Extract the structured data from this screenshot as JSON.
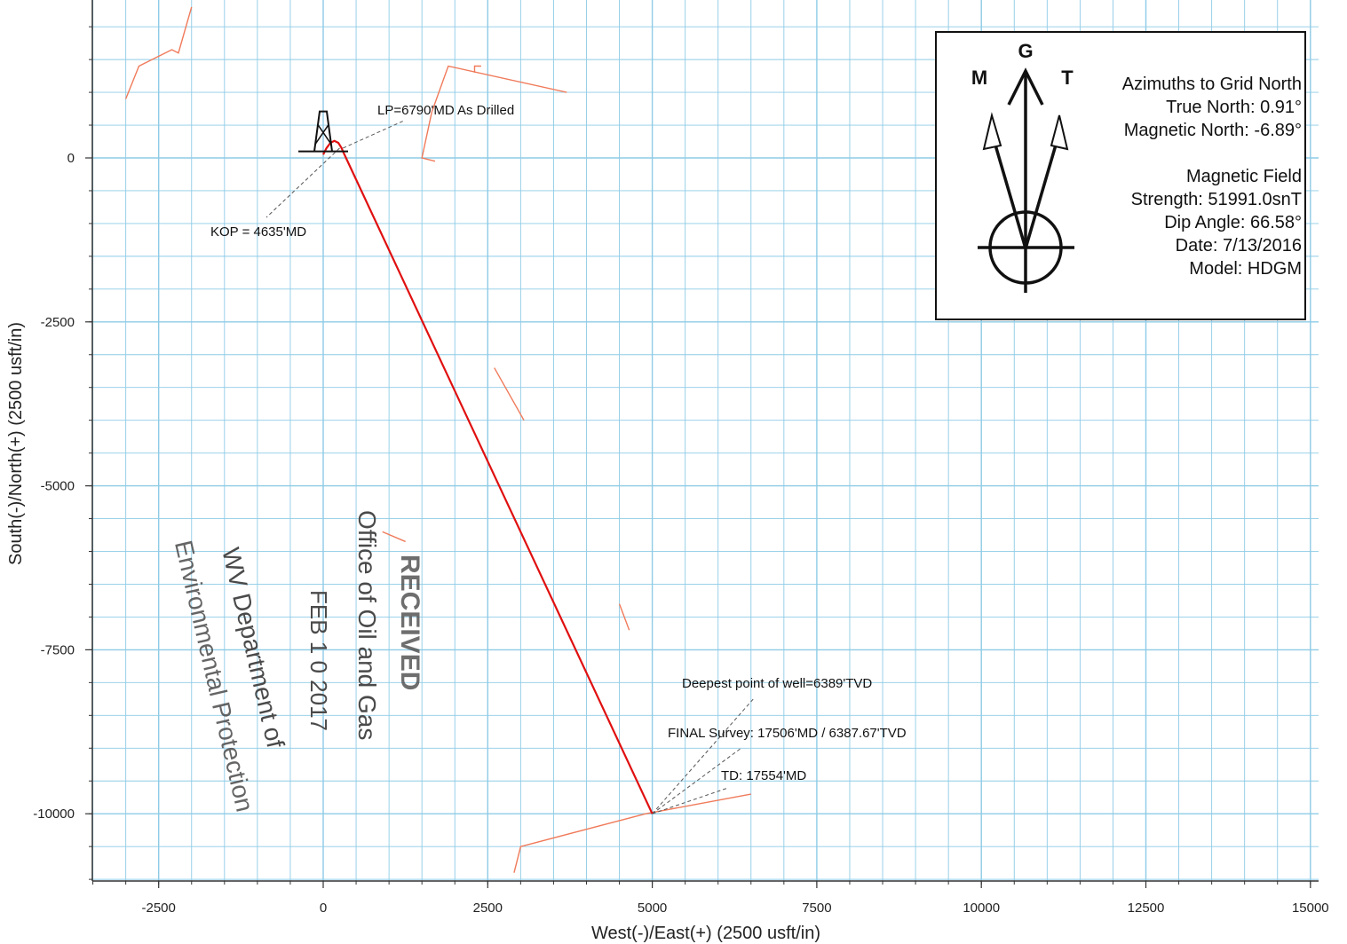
{
  "chart_data": {
    "type": "line",
    "xlabel": "West(-)/East(+) (2500 usft/in)",
    "ylabel": "South(-)/North(+) (2500 usft/in)",
    "xlim": [
      -3500,
      15000
    ],
    "ylim": [
      -11000,
      2300
    ],
    "x_ticks": [
      -2500,
      0,
      2500,
      5000,
      7500,
      10000,
      12500,
      15000
    ],
    "y_ticks": [
      0,
      -2500,
      -5000,
      -7500,
      -10000
    ],
    "grid": true,
    "series": [
      {
        "color": "#e01010",
        "x": [
          0,
          50,
          110,
          170,
          230,
          280,
          300,
          5000
        ],
        "y": [
          50,
          150,
          230,
          260,
          230,
          150,
          100,
          -10000
        ]
      }
    ],
    "annotations": {
      "lp": "LP=6790'MD As Drilled",
      "kop": "KOP = 4635'MD",
      "deepest": "Deepest point of well=6389'TVD",
      "final_survey": "FINAL Survey: 17506'MD / 6387.67'TVD",
      "td": "TD: 17554'MD"
    },
    "legend": {
      "letters": {
        "g": "G",
        "m": "M",
        "t": "T"
      },
      "lines": [
        "Azimuths to Grid North",
        "True North: 0.91°",
        "Magnetic North: -6.89°",
        "Magnetic Field",
        "Strength: 51991.0snT",
        "Dip Angle: 66.58°",
        "Date: 7/13/2016",
        "Model: HDGM"
      ]
    },
    "stamp": {
      "line1": "RECEIVED",
      "line2": "Office of Oil and Gas",
      "line3": "FEB 1 0 2017",
      "line4": "WV Department of",
      "line5": "Environmental Protection"
    }
  },
  "colors": {
    "grid": "#8ecbe6",
    "trajectory": "#e01010",
    "offset_wells": "#f07a5a",
    "axis": "#333333"
  }
}
